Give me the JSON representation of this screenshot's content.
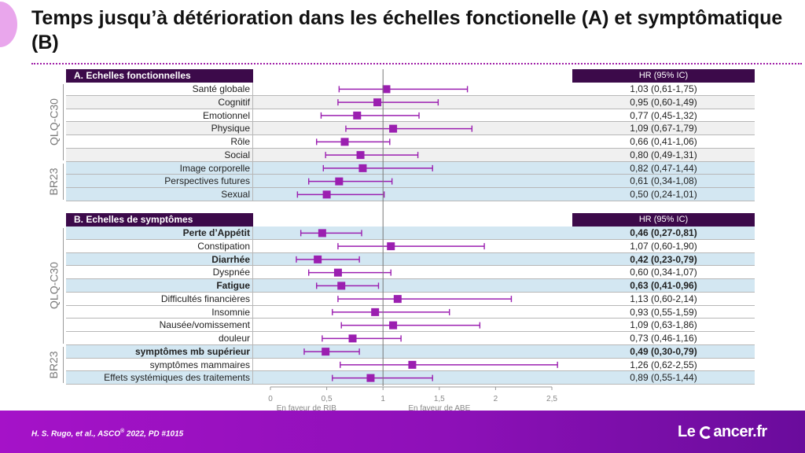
{
  "slide": {
    "title": "Temps jusqu’à détérioration dans les échelles fonctionelle (A) et symptômatique (B)",
    "footer_citation_pre": "H. S. Rugo, et al., ASCO",
    "footer_citation_sup": "®",
    "footer_citation_post": " 2022, PD #1015",
    "logo_left": "Le ",
    "logo_right": "ancer.fr",
    "colors": {
      "accent": "#a020a8",
      "marker": "#9b1fb0",
      "header": "#3c0a4a",
      "footer": "#8e10b8"
    }
  },
  "chart_data": {
    "type": "forest",
    "x_scale": "linear",
    "xlim": [
      0,
      2.5
    ],
    "x_ticks": [
      0,
      0.5,
      1,
      1.5,
      2,
      2.5
    ],
    "x_tick_labels": [
      "0",
      "0,5",
      "1",
      "1,5",
      "2",
      "2,5"
    ],
    "reference_line": 1,
    "favor_left": "En faveur de RIB",
    "favor_right": "En faveur de ABE",
    "hr_header": "HR (95% IC)",
    "sections": [
      {
        "header": "A. Echelles fonctionnelles",
        "groups": [
          {
            "name": "QLQ-C30",
            "rows": [
              {
                "label": "Santé globale",
                "hr": 1.03,
                "lo": 0.61,
                "hi": 1.75,
                "text": "1,03 (0,61-1,75)",
                "bold": false,
                "shade": "white"
              },
              {
                "label": "Cognitif",
                "hr": 0.95,
                "lo": 0.6,
                "hi": 1.49,
                "text": "0,95 (0,60-1,49)",
                "bold": false,
                "shade": "gray"
              },
              {
                "label": "Emotionnel",
                "hr": 0.77,
                "lo": 0.45,
                "hi": 1.32,
                "text": "0,77 (0,45-1,32)",
                "bold": false,
                "shade": "white"
              },
              {
                "label": "Physique",
                "hr": 1.09,
                "lo": 0.67,
                "hi": 1.79,
                "text": "1,09 (0,67-1,79)",
                "bold": false,
                "shade": "gray"
              },
              {
                "label": "Rôle",
                "hr": 0.66,
                "lo": 0.41,
                "hi": 1.06,
                "text": "0,66 (0,41-1,06)",
                "bold": false,
                "shade": "white"
              },
              {
                "label": "Social",
                "hr": 0.8,
                "lo": 0.49,
                "hi": 1.31,
                "text": "0,80 (0,49-1,31)",
                "bold": false,
                "shade": "gray"
              }
            ]
          },
          {
            "name": "BR23",
            "rows": [
              {
                "label": "Image corporelle",
                "hr": 0.82,
                "lo": 0.47,
                "hi": 1.44,
                "text": "0,82 (0,47-1,44)",
                "bold": false,
                "shade": "blue"
              },
              {
                "label": "Perspectives futures",
                "hr": 0.61,
                "lo": 0.34,
                "hi": 1.08,
                "text": "0,61 (0,34-1,08)",
                "bold": false,
                "shade": "blue"
              },
              {
                "label": "Sexual",
                "hr": 0.5,
                "lo": 0.24,
                "hi": 1.01,
                "text": "0,50 (0,24-1,01)",
                "bold": false,
                "shade": "blue"
              }
            ]
          }
        ]
      },
      {
        "header": "B. Echelles de symptômes",
        "groups": [
          {
            "name": "QLQ-C30",
            "rows": [
              {
                "label": "Perte d’Appétit",
                "hr": 0.46,
                "lo": 0.27,
                "hi": 0.81,
                "text": "0,46 (0,27-0,81)",
                "bold": true,
                "shade": "blue"
              },
              {
                "label": "Constipation",
                "hr": 1.07,
                "lo": 0.6,
                "hi": 1.9,
                "text": "1,07 (0,60-1,90)",
                "bold": false,
                "shade": "white"
              },
              {
                "label": "Diarrhée",
                "hr": 0.42,
                "lo": 0.23,
                "hi": 0.79,
                "text": "0,42 (0,23-0,79)",
                "bold": true,
                "shade": "blue"
              },
              {
                "label": "Dyspnée",
                "hr": 0.6,
                "lo": 0.34,
                "hi": 1.07,
                "text": "0,60 (0,34-1,07)",
                "bold": false,
                "shade": "white"
              },
              {
                "label": "Fatigue",
                "hr": 0.63,
                "lo": 0.41,
                "hi": 0.96,
                "text": "0,63 (0,41-0,96)",
                "bold": true,
                "shade": "blue"
              },
              {
                "label": "Difficultés financières",
                "hr": 1.13,
                "lo": 0.6,
                "hi": 2.14,
                "text": "1,13 (0,60-2,14)",
                "bold": false,
                "shade": "white"
              },
              {
                "label": "Insomnie",
                "hr": 0.93,
                "lo": 0.55,
                "hi": 1.59,
                "text": "0,93 (0,55-1,59)",
                "bold": false,
                "shade": "white"
              },
              {
                "label": "Nausée/vomissement",
                "hr": 1.09,
                "lo": 0.63,
                "hi": 1.86,
                "text": "1,09 (0,63-1,86)",
                "bold": false,
                "shade": "white"
              },
              {
                "label": "douleur",
                "hr": 0.73,
                "lo": 0.46,
                "hi": 1.16,
                "text": "0,73 (0,46-1,16)",
                "bold": false,
                "shade": "white"
              }
            ]
          },
          {
            "name": "BR23",
            "rows": [
              {
                "label": "symptômes mb supérieur",
                "hr": 0.49,
                "lo": 0.3,
                "hi": 0.79,
                "text": "0,49 (0,30-0,79)",
                "bold": true,
                "shade": "blue"
              },
              {
                "label": "symptômes mammaires",
                "hr": 1.26,
                "lo": 0.62,
                "hi": 2.55,
                "text": "1,26 (0,62-2,55)",
                "bold": false,
                "shade": "white"
              },
              {
                "label": "Effets systémiques des traitements",
                "hr": 0.89,
                "lo": 0.55,
                "hi": 1.44,
                "text": "0,89 (0,55-1,44)",
                "bold": false,
                "shade": "blue"
              }
            ]
          }
        ]
      }
    ]
  }
}
